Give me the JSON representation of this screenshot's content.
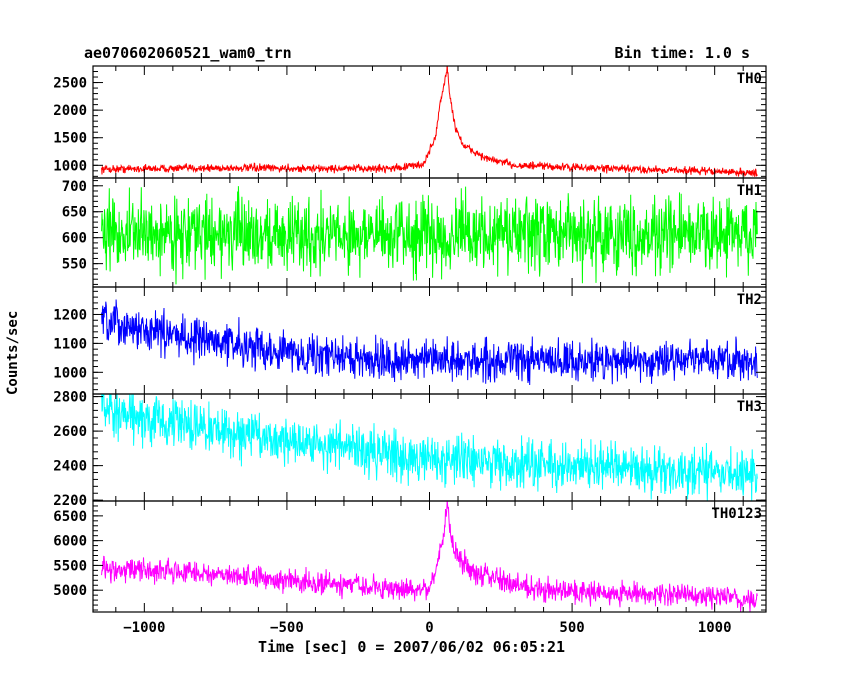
{
  "header": {
    "title": "ae070602060521_wam0_trn",
    "bin_time": "Bin time: 1.0 s"
  },
  "axes": {
    "xlabel": "Time [sec] 0 = 2007/06/02 06:05:21",
    "ylabel": "Counts/sec"
  },
  "chart_data": [
    {
      "type": "line",
      "name": "TH0",
      "color": "#ff0000",
      "xlim": [
        -1180,
        1180
      ],
      "ylim": [
        770,
        2800
      ],
      "yticks": [
        1000,
        1500,
        2000,
        2500
      ],
      "x": [
        -1150,
        -1000,
        -800,
        -600,
        -400,
        -200,
        -100,
        -20,
        20,
        40,
        55,
        62,
        70,
        90,
        120,
        200,
        300,
        500,
        700,
        900,
        1150
      ],
      "values": [
        930,
        940,
        950,
        950,
        940,
        940,
        960,
        1020,
        1500,
        2200,
        2550,
        2800,
        2300,
        1700,
        1350,
        1120,
        1000,
        960,
        930,
        910,
        860
      ]
    },
    {
      "type": "line",
      "name": "TH1",
      "color": "#00ff00",
      "xlim": [
        -1180,
        1180
      ],
      "ylim": [
        505,
        715
      ],
      "yticks": [
        550,
        600,
        650,
        700
      ],
      "x": [
        -1150,
        -500,
        0,
        500,
        1150
      ],
      "values": [
        608,
        606,
        605,
        606,
        606
      ]
    },
    {
      "type": "line",
      "name": "TH2",
      "color": "#0000ff",
      "xlim": [
        -1180,
        1180
      ],
      "ylim": [
        925,
        1295
      ],
      "yticks": [
        1000,
        1100,
        1200
      ],
      "x": [
        -1150,
        -900,
        -700,
        -500,
        -300,
        0,
        300,
        600,
        900,
        1150
      ],
      "values": [
        1170,
        1130,
        1100,
        1070,
        1050,
        1040,
        1040,
        1040,
        1045,
        1040
      ]
    },
    {
      "type": "line",
      "name": "TH3",
      "color": "#00ffff",
      "xlim": [
        -1180,
        1180
      ],
      "ylim": [
        2195,
        2815
      ],
      "yticks": [
        2200,
        2400,
        2600,
        2800
      ],
      "x": [
        -1150,
        -800,
        -500,
        -200,
        100,
        400,
        700,
        1000,
        1150
      ],
      "values": [
        2700,
        2620,
        2550,
        2480,
        2430,
        2400,
        2380,
        2360,
        2340
      ]
    },
    {
      "type": "line",
      "name": "TH0123",
      "color": "#ff00ff",
      "xlim": [
        -1180,
        1180
      ],
      "ylim": [
        4560,
        6800
      ],
      "yticks": [
        5000,
        5500,
        6000,
        6500
      ],
      "x": [
        -1150,
        -900,
        -700,
        -500,
        -300,
        -100,
        0,
        30,
        50,
        62,
        75,
        100,
        150,
        250,
        400,
        600,
        900,
        1150
      ],
      "values": [
        5450,
        5380,
        5300,
        5200,
        5100,
        5000,
        5050,
        5600,
        6200,
        6800,
        6100,
        5650,
        5400,
        5200,
        5000,
        4950,
        4900,
        4800
      ]
    }
  ],
  "xaxis": {
    "ticks": [
      -1000,
      -500,
      0,
      500,
      1000
    ],
    "tick_labels": [
      "−1000",
      "−500",
      "0",
      "500",
      "1000"
    ]
  }
}
